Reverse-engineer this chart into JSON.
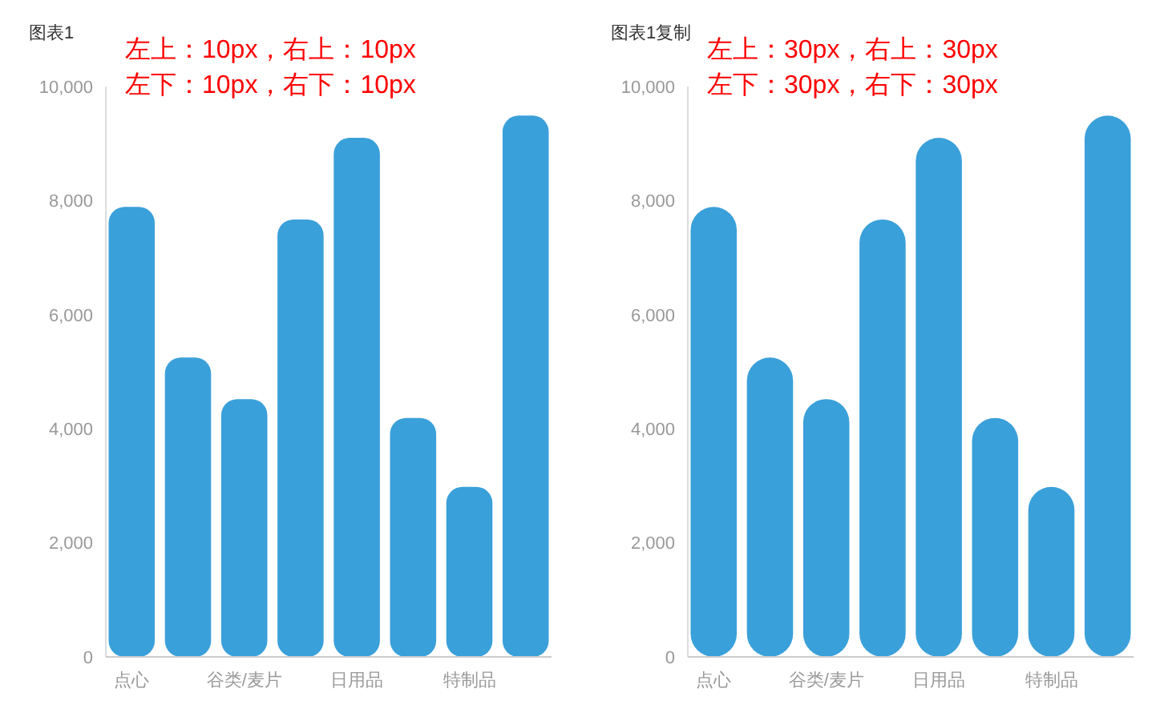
{
  "chart_data": [
    {
      "type": "bar",
      "title": "图表1",
      "annotations": [
        "左上：10px，右上：10px",
        "左下：10px，右下：10px"
      ],
      "categories": [
        "点心",
        null,
        "谷类/麦片",
        null,
        "日用品",
        null,
        "特制品",
        null
      ],
      "values": [
        7890,
        5250,
        4520,
        7670,
        9100,
        4190,
        2980,
        9490
      ],
      "color": "#3aa0da",
      "ylim": [
        0,
        10000
      ],
      "yticks": [
        {
          "value": 0,
          "label": "0"
        },
        {
          "value": 2000,
          "label": "2,000"
        },
        {
          "value": 4000,
          "label": "4,000"
        },
        {
          "value": 6000,
          "label": "6,000"
        },
        {
          "value": 8000,
          "label": "8,000"
        },
        {
          "value": 10000,
          "label": "10,000"
        }
      ]
    },
    {
      "type": "bar",
      "title": "图表1复制",
      "annotations": [
        "左上：30px，右上：30px",
        "左下：30px，右下：30px"
      ],
      "categories": [
        "点心",
        null,
        "谷类/麦片",
        null,
        "日用品",
        null,
        "特制品",
        null
      ],
      "values": [
        7890,
        5250,
        4520,
        7670,
        9100,
        4190,
        2980,
        9490
      ],
      "color": "#3aa0da",
      "ylim": [
        0,
        10000
      ],
      "yticks": [
        {
          "value": 0,
          "label": "0"
        },
        {
          "value": 2000,
          "label": "2,000"
        },
        {
          "value": 4000,
          "label": "4,000"
        },
        {
          "value": 6000,
          "label": "6,000"
        },
        {
          "value": 8000,
          "label": "8,000"
        },
        {
          "value": 10000,
          "label": "10,000"
        }
      ]
    }
  ]
}
